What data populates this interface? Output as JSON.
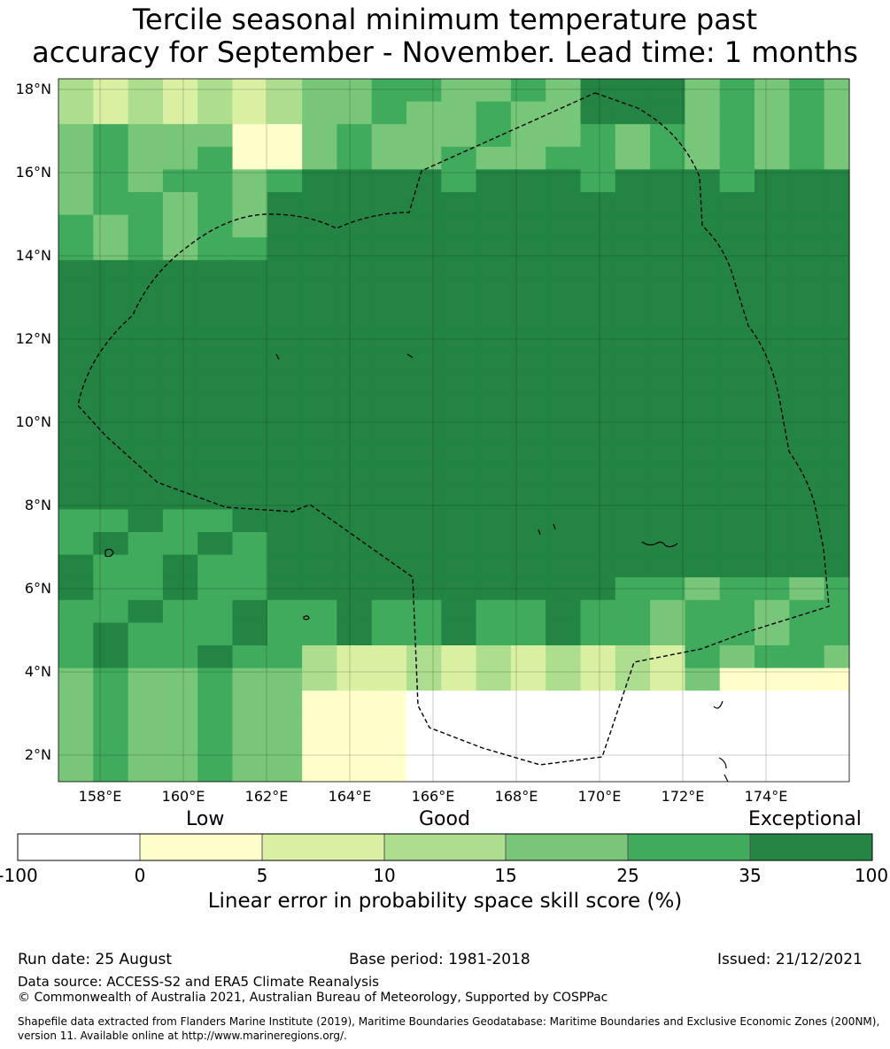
{
  "title_line1": "Tercile seasonal minimum temperature past",
  "title_line2": "accuracy for September - November. Lead time: 1 months",
  "map": {
    "lat_labels": [
      "18°N",
      "16°N",
      "14°N",
      "12°N",
      "10°N",
      "8°N",
      "6°N",
      "4°N",
      "2°N"
    ],
    "lon_labels": [
      "158°E",
      "160°E",
      "162°E",
      "164°E",
      "166°E",
      "168°E",
      "170°E",
      "172°E",
      "174°E"
    ]
  },
  "colorbar": {
    "category_low": "Low",
    "category_good": "Good",
    "category_exceptional": "Exceptional",
    "ticks": [
      "-100",
      "0",
      "5",
      "10",
      "15",
      "25",
      "35",
      "100"
    ],
    "colors": [
      "#ffffff",
      "#ffffcc",
      "#d9f0a3",
      "#addd8e",
      "#78c679",
      "#41ab5d",
      "#238443"
    ],
    "label": "Linear error in probability space skill score (%)"
  },
  "footer": {
    "run_date": "Run date: 25 August",
    "base_period": "Base period: 1981-2018",
    "issued": "Issued: 21/12/2021",
    "data_source": "Data source: ACCESS-S2 and ERA5 Climate Reanalysis",
    "copyright": "© Commonwealth of Australia 2021, Australian Bureau of Meteorology, Supported by COSPPac",
    "shapefile_line1": "Shapefile data extracted from Flanders Marine Institute (2019), Maritime Boundaries Geodatabase: Maritime Boundaries and Exclusive Economic Zones (200NM),",
    "shapefile_line2": "version 11. Available online at http://www.marineregions.org/."
  }
}
